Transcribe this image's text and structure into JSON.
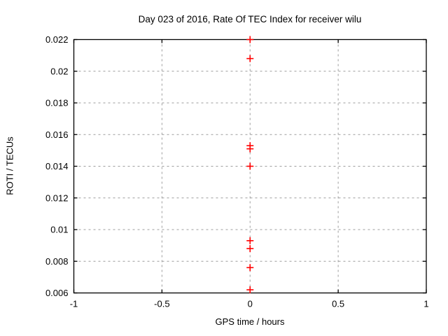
{
  "chart_data": {
    "type": "scatter",
    "title": "Day 023 of 2016, Rate Of TEC Index for receiver wilu",
    "xlabel": "GPS time / hours",
    "ylabel": "ROTI / TECUs",
    "xlim": [
      -1,
      1
    ],
    "ylim": [
      0.006,
      0.022
    ],
    "x_ticks": [
      -1,
      -0.5,
      0,
      0.5,
      1
    ],
    "x_tick_labels": [
      "-1",
      "-0.5",
      "0",
      "0.5",
      "1"
    ],
    "y_ticks": [
      0.006,
      0.008,
      0.01,
      0.012,
      0.014,
      0.016,
      0.018,
      0.02,
      0.022
    ],
    "y_tick_labels": [
      "0.006",
      "0.008",
      "0.01",
      "0.012",
      "0.014",
      "0.016",
      "0.018",
      "0.02",
      "0.022"
    ],
    "grid": true,
    "legend": "none",
    "series": [
      {
        "name": "ROTI",
        "marker": "plus",
        "color": "#ff0000",
        "points": [
          {
            "x": 0,
            "y": 0.022
          },
          {
            "x": 0,
            "y": 0.0208
          },
          {
            "x": 0,
            "y": 0.0153
          },
          {
            "x": 0,
            "y": 0.0151
          },
          {
            "x": 0,
            "y": 0.014
          },
          {
            "x": 0,
            "y": 0.0093
          },
          {
            "x": 0,
            "y": 0.0088
          },
          {
            "x": 0,
            "y": 0.0076
          },
          {
            "x": 0,
            "y": 0.0062
          }
        ]
      }
    ]
  },
  "colors": {
    "background": "#ffffff",
    "border": "#000000",
    "grid": "#9e9e9e",
    "text": "#000000",
    "marker": "#ff0000"
  }
}
